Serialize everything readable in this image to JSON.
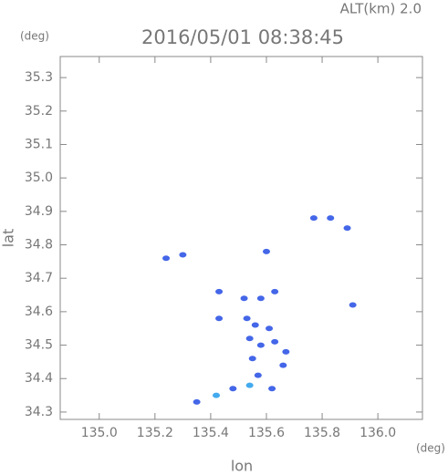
{
  "chart_data": {
    "type": "scatter",
    "title": "2016/05/01 08:38:45",
    "subtitle": "ALT(km) 2.0",
    "x_label": "lon",
    "y_label": "lat",
    "x_unit": "(deg)",
    "y_unit": "(deg)",
    "xlim": [
      134.86,
      136.16
    ],
    "ylim": [
      34.278,
      35.363
    ],
    "xticks": [
      {
        "value": 135,
        "label": "135.0"
      },
      135.2,
      135.4,
      135.6,
      135.8,
      {
        "value": 136,
        "label": "136.0"
      }
    ],
    "yticks": [
      34.3,
      34.4,
      34.5,
      34.6,
      34.7,
      34.8,
      34.9,
      {
        "value": 35,
        "label": "35.0"
      },
      35.1,
      35.2,
      35.3
    ],
    "series": [
      {
        "color": "#4466e8",
        "x": [
          135.24,
          135.3,
          135.43,
          135.52,
          135.58,
          135.63,
          135.53,
          135.56,
          135.54,
          135.58,
          135.63,
          135.67,
          135.66,
          135.55,
          135.61,
          135.6,
          135.43,
          135.77,
          135.83,
          135.91,
          135.89,
          135.57,
          135.48,
          135.35,
          135.62
        ],
        "values": [
          34.76,
          34.77,
          34.66,
          34.64,
          34.64,
          34.66,
          34.58,
          34.56,
          34.52,
          34.5,
          34.51,
          34.48,
          34.44,
          34.46,
          34.55,
          34.78,
          34.58,
          34.88,
          34.88,
          34.62,
          34.85,
          34.41,
          34.37,
          34.33,
          34.37
        ]
      },
      {
        "color": "#44aaee",
        "x": [
          135.54,
          135.42
        ],
        "values": [
          34.38,
          34.35
        ]
      }
    ]
  }
}
